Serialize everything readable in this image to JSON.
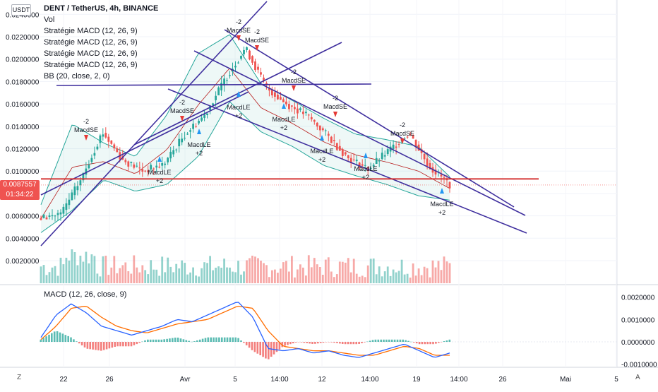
{
  "currency_badge": "USDT",
  "legend": {
    "title": "DENT / TetherUS, 4h, BINANCE",
    "lines": [
      "Vol",
      "Stratégie MACD (12, 26, 9)",
      "Stratégie MACD (12, 26, 9)",
      "Stratégie MACD (12, 26, 9)",
      "Stratégie MACD (12, 26, 9)",
      "BB (20, close, 2, 0)"
    ]
  },
  "macd_legend": "MACD (12, 26, close, 9)",
  "price_tag": {
    "value": "0.0087557",
    "countdown": "01:34:22"
  },
  "x_ticks": [
    "22",
    "26",
    "Avr",
    "5",
    "14:00",
    "12",
    "14:00",
    "19",
    "14:00",
    "26",
    "Mai",
    "5"
  ],
  "corner_left": "Z",
  "corner_right": "A",
  "colors": {
    "up": "#26a69a",
    "down": "#ef5350",
    "bb": "#26a69a",
    "trend": "#3f2f9e",
    "resistance": "#d32f2f",
    "macd": "#2962ff",
    "signal": "#ff6d00",
    "tag_bg": "#ef5350"
  },
  "chart_data": [
    {
      "type": "candlestick",
      "title": "DENT / TetherUS, 4h, BINANCE",
      "y_ticks": [
        "0.0020000",
        "0.0040000",
        "0.0060000",
        "0.0080000",
        "0.0100000",
        "0.0120000",
        "0.0140000",
        "0.0160000",
        "0.0180000",
        "0.0200000",
        "0.0220000",
        "0.0240000"
      ],
      "ylim": [
        0.0,
        0.0245
      ],
      "last_price": 0.0087557,
      "key_points": [
        0.0058,
        0.0062,
        0.0094,
        0.0135,
        0.011,
        0.01,
        0.0106,
        0.0132,
        0.015,
        0.0182,
        0.021,
        0.0175,
        0.016,
        0.015,
        0.0132,
        0.0112,
        0.0102,
        0.0118,
        0.0134,
        0.0104,
        0.0088
      ],
      "bb_upper": [
        0.007,
        0.0142,
        0.0125,
        0.0113,
        0.015,
        0.0205,
        0.0222,
        0.0178,
        0.0163,
        0.0147,
        0.0133,
        0.0128,
        0.0122,
        0.0095
      ],
      "bb_lower": [
        0.0045,
        0.0065,
        0.0092,
        0.0082,
        0.0088,
        0.0113,
        0.0162,
        0.0135,
        0.0122,
        0.0105,
        0.0096,
        0.0088,
        0.0078,
        0.0074
      ],
      "resistance_level": 0.0093,
      "signals": [
        {
          "label": "MacdSE",
          "qty": "-2"
        },
        {
          "label": "MacdLE",
          "qty": "+2"
        },
        {
          "label": "MacdSE",
          "qty": "-2"
        },
        {
          "label": "MacdLE",
          "qty": "+2"
        },
        {
          "label": "MacdSE",
          "qty": "-2"
        },
        {
          "label": "MacdSE",
          "qty": "-2"
        },
        {
          "label": "MacdLE",
          "qty": "+2"
        },
        {
          "label": "MacdSE",
          "qty": "-2"
        },
        {
          "label": "MacdLE",
          "qty": "+2"
        },
        {
          "label": "MacdSE",
          "qty": "-2"
        },
        {
          "label": "MacdLE",
          "qty": "+2"
        },
        {
          "label": "MacdLE",
          "qty": "+2"
        },
        {
          "label": "MacdSE",
          "qty": "-2"
        },
        {
          "label": "MacdLE",
          "qty": "+2"
        }
      ]
    },
    {
      "type": "line",
      "title": "MACD (12, 26, close, 9)",
      "y_ticks": [
        "0.0020000",
        "0.0010000",
        "0.0000000",
        "-0.0010000"
      ],
      "ylim": [
        -0.00135,
        0.00235
      ],
      "series": [
        {
          "name": "MACD",
          "values": [
            0.0002,
            0.0012,
            0.0017,
            0.0013,
            0.0007,
            0.0005,
            0.0003,
            0.0005,
            0.0007,
            0.001,
            0.0009,
            0.0012,
            0.0015,
            0.0018,
            0.0011,
            -0.0003,
            -0.0004,
            -0.0003,
            -0.0005,
            -0.0004,
            -0.0006,
            -0.0007,
            -0.0005,
            -0.0003,
            -0.0001,
            -0.0004,
            -0.0007,
            -0.0005
          ]
        },
        {
          "name": "Signal",
          "values": [
            0.0001,
            0.0007,
            0.0015,
            0.0016,
            0.0011,
            0.0007,
            0.0005,
            0.0004,
            0.0006,
            0.0008,
            0.0009,
            0.001,
            0.0013,
            0.0016,
            0.0015,
            0.0005,
            -0.0002,
            -0.0003,
            -0.0004,
            -0.0004,
            -0.0005,
            -0.0006,
            -0.0006,
            -0.0004,
            -0.0002,
            -0.0003,
            -0.0006,
            -0.0006
          ]
        }
      ]
    }
  ]
}
